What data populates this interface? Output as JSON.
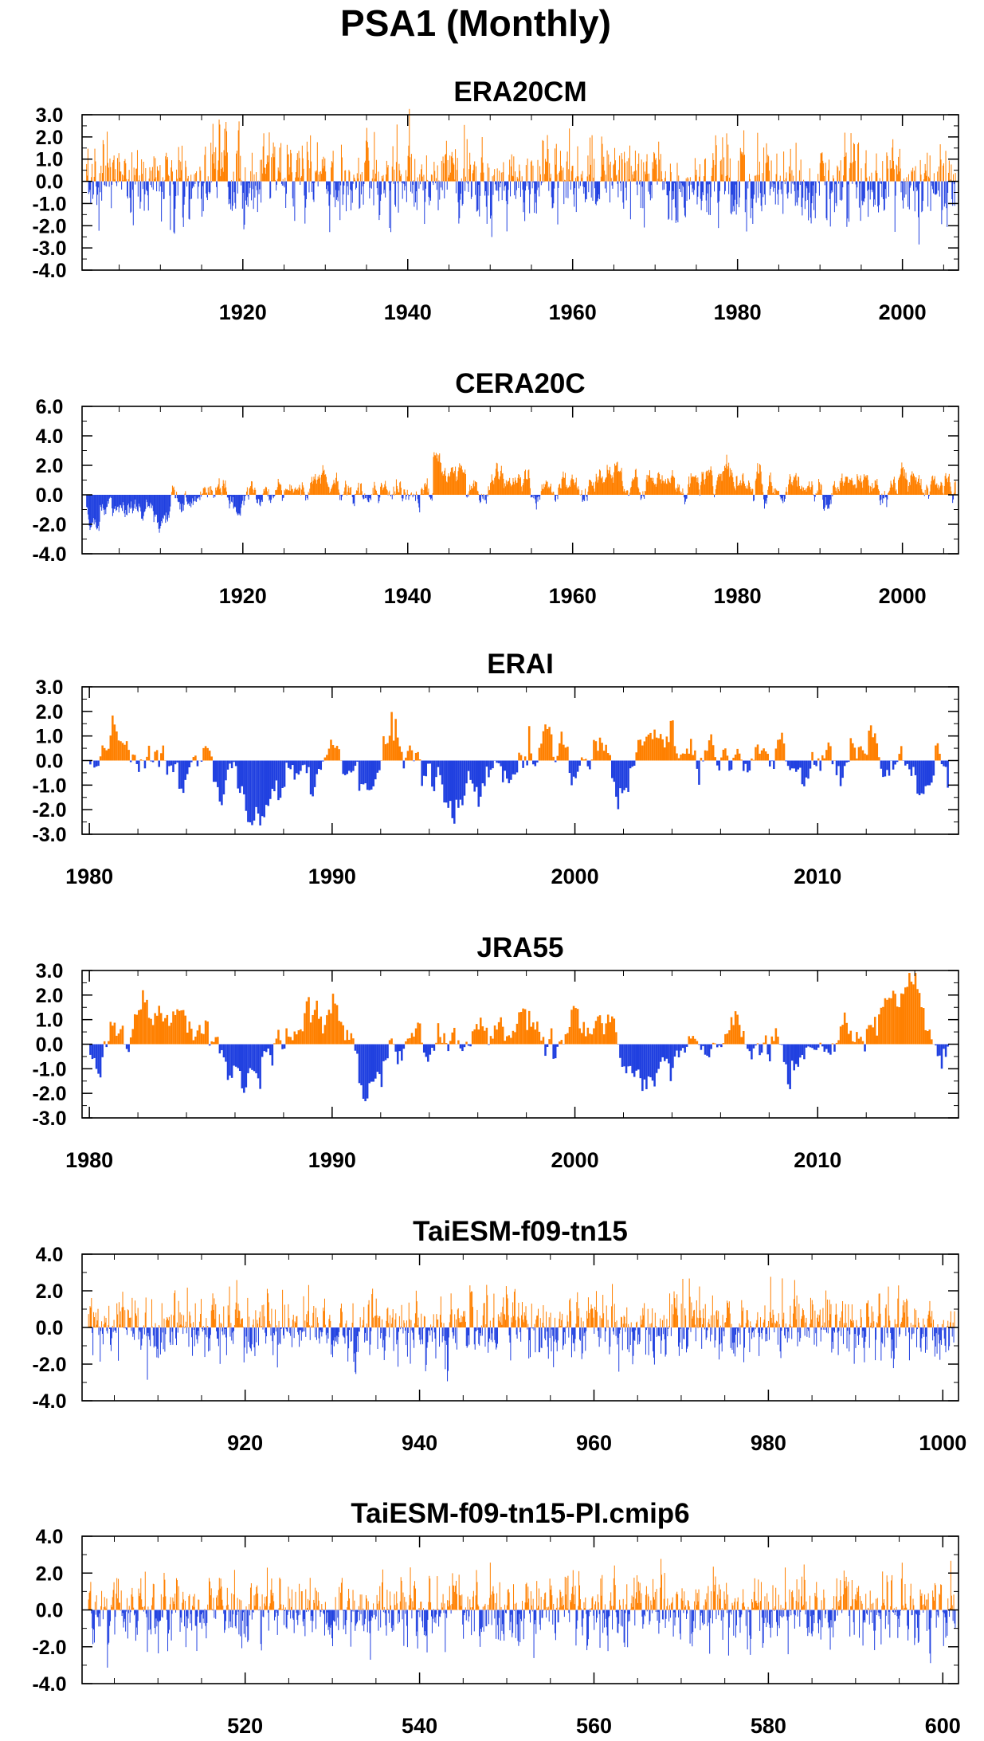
{
  "figure": {
    "title": "PSA1 (Monthly)"
  },
  "colors": {
    "positive": "#ff8000",
    "negative": "#2040e0",
    "axis": "#000000"
  },
  "chart_data": [
    {
      "type": "bar",
      "title": "ERA20CM",
      "xlim": [
        1900.5,
        2006.8
      ],
      "ylim": [
        -4,
        3
      ],
      "xticks": [
        1920,
        1940,
        1960,
        1980,
        2000
      ],
      "yticks": [
        3,
        2,
        1,
        0,
        -1,
        -2,
        -3,
        -4
      ],
      "ytick_decimals": 1,
      "x_minor_step": 5,
      "y_minor_step": 0.5,
      "bar_step": 0.0833,
      "anomaly_profile": {
        "spread": 0.9,
        "persistence": 0.3,
        "max_abs": 3.5,
        "regimes": [
          [
            1916,
            1918,
            1.2
          ],
          [
            1928,
            1929,
            0.7
          ],
          [
            1944,
            1946,
            0.8
          ],
          [
            1956,
            1957,
            0.9
          ],
          [
            1971,
            1973,
            -0.8
          ],
          [
            1996,
            1998,
            -0.4
          ]
        ]
      }
    },
    {
      "type": "bar",
      "title": "CERA20C",
      "xlim": [
        1900.5,
        2006.8
      ],
      "ylim": [
        -4,
        6
      ],
      "xticks": [
        1920,
        1940,
        1960,
        1980,
        2000
      ],
      "yticks": [
        6,
        4,
        2,
        0,
        -2,
        -4
      ],
      "ytick_decimals": 1,
      "x_minor_step": 5,
      "y_minor_step": 1,
      "bar_step": 0.0833,
      "anomaly_profile": {
        "spread": 0.65,
        "persistence": 0.85,
        "max_abs": 4.2,
        "regimes": [
          [
            1900,
            1911,
            -1.1
          ],
          [
            1911,
            1915,
            -0.6
          ],
          [
            1915,
            1943,
            0.15
          ],
          [
            1943,
            1947,
            2.0
          ],
          [
            1947,
            1955,
            0.5
          ],
          [
            1955,
            2006,
            0.7
          ]
        ]
      }
    },
    {
      "type": "bar",
      "title": "ERAI",
      "xlim": [
        1979.7,
        2015.8
      ],
      "ylim": [
        -3,
        3
      ],
      "xticks": [
        1980,
        1990,
        2000,
        2010
      ],
      "yticks": [
        3,
        2,
        1,
        0,
        -1,
        -2,
        -3
      ],
      "ytick_decimals": 1,
      "x_minor_step": 2,
      "y_minor_step": 0.5,
      "bar_step": 0.0833,
      "anomaly_profile": {
        "spread": 0.85,
        "persistence": 0.9,
        "max_abs": 2.8,
        "regimes": [
          [
            1986,
            1987,
            -1.0
          ],
          [
            1988,
            1989,
            1.2
          ],
          [
            1991,
            1992,
            -1.1
          ],
          [
            1994,
            1995,
            -0.8
          ],
          [
            1998,
            1999,
            1.0
          ],
          [
            2011,
            2014,
            0.6
          ]
        ]
      }
    },
    {
      "type": "bar",
      "title": "JRA55",
      "xlim": [
        1979.7,
        2015.8
      ],
      "ylim": [
        -3,
        3
      ],
      "xticks": [
        1980,
        1990,
        2000,
        2010
      ],
      "yticks": [
        3,
        2,
        1,
        0,
        -1,
        -2,
        -3
      ],
      "ytick_decimals": 1,
      "x_minor_step": 2,
      "y_minor_step": 0.5,
      "bar_step": 0.0833,
      "anomaly_profile": {
        "spread": 0.85,
        "persistence": 0.9,
        "max_abs": 2.9,
        "regimes": [
          [
            1986,
            1987,
            -1.0
          ],
          [
            1988,
            1989,
            1.1
          ],
          [
            1991,
            1992,
            -1.2
          ],
          [
            1996,
            1997,
            0.9
          ],
          [
            1998,
            1999,
            1.0
          ],
          [
            2011,
            2014,
            0.6
          ]
        ]
      }
    },
    {
      "type": "bar",
      "title": "TaiESM-f09-tn15",
      "xlim": [
        901.3,
        1001.8
      ],
      "ylim": [
        -4,
        4
      ],
      "xticks": [
        920,
        940,
        960,
        980,
        1000
      ],
      "yticks": [
        4,
        2,
        0,
        -2,
        -4
      ],
      "ytick_decimals": 1,
      "x_minor_step": 5,
      "y_minor_step": 1,
      "bar_step": 0.0833,
      "anomaly_profile": {
        "spread": 0.95,
        "persistence": 0.3,
        "max_abs": 3.5,
        "regimes": []
      }
    },
    {
      "type": "bar",
      "title": "TaiESM-f09-tn15-PI.cmip6",
      "xlim": [
        501.3,
        601.8
      ],
      "ylim": [
        -4,
        4
      ],
      "xticks": [
        520,
        540,
        560,
        580,
        600
      ],
      "yticks": [
        4,
        2,
        0,
        -2,
        -4
      ],
      "ytick_decimals": 1,
      "x_minor_step": 5,
      "y_minor_step": 1,
      "bar_step": 0.0833,
      "anomaly_profile": {
        "spread": 0.95,
        "persistence": 0.3,
        "max_abs": 3.2,
        "regimes": []
      }
    }
  ]
}
